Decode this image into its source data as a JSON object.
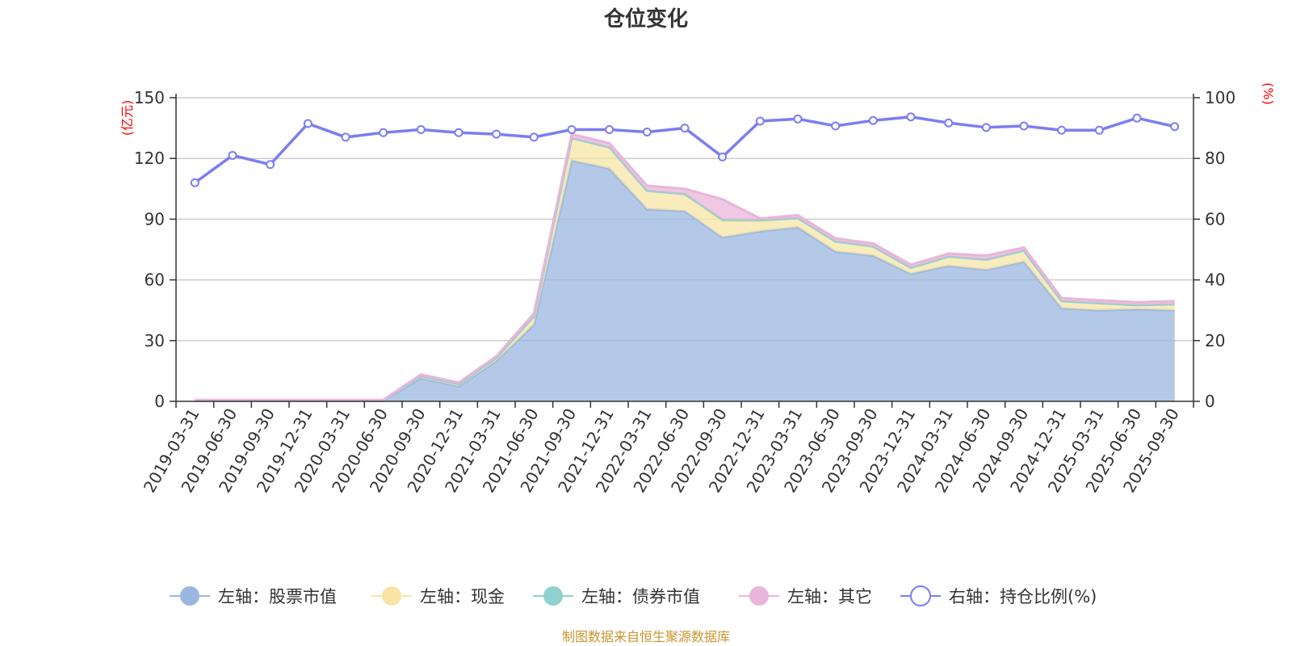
{
  "chart_data": {
    "type": "area",
    "title": "仓位变化",
    "left_axis_unit": "(亿元)",
    "right_axis_unit": "(%)",
    "left_ylim": [
      0,
      150
    ],
    "left_ticks": [
      0,
      30,
      60,
      90,
      120,
      150
    ],
    "right_ylim": [
      0,
      100
    ],
    "right_ticks": [
      0,
      20,
      40,
      60,
      80,
      100
    ],
    "categories": [
      "2019-03-31",
      "2019-06-30",
      "2019-09-30",
      "2019-12-31",
      "2020-03-31",
      "2020-06-30",
      "2020-09-30",
      "2020-12-31",
      "2021-03-31",
      "2021-06-30",
      "2021-09-30",
      "2021-12-31",
      "2022-03-31",
      "2022-06-30",
      "2022-09-30",
      "2022-12-31",
      "2023-03-31",
      "2023-06-30",
      "2023-09-30",
      "2023-12-31",
      "2024-03-31",
      "2024-06-30",
      "2024-09-30",
      "2024-12-31",
      "2025-03-31",
      "2025-06-30",
      "2025-09-30"
    ],
    "series": [
      {
        "name": "左轴：股票市值",
        "axis": "left",
        "color": "#9bb6e0",
        "values": [
          0.3,
          0.3,
          0.3,
          0.3,
          0.3,
          0.3,
          11.5,
          7.5,
          20,
          38,
          119,
          115,
          95,
          94,
          81,
          84,
          86,
          74,
          72,
          63,
          67,
          65,
          69,
          46,
          45,
          45.5,
          45
        ]
      },
      {
        "name": "左轴：现金",
        "axis": "left",
        "color": "#f7e5a5",
        "values": [
          0.2,
          0.2,
          0.2,
          0.2,
          0.2,
          0.2,
          1.0,
          1.0,
          1.5,
          4,
          11,
          10.5,
          9,
          8.5,
          8,
          5,
          4.5,
          5,
          4.5,
          3,
          4.5,
          5,
          5.5,
          3.5,
          3.5,
          2,
          3
        ]
      },
      {
        "name": "左轴：债券市值",
        "axis": "left",
        "color": "#8fd1cf",
        "values": [
          0,
          0,
          0,
          0,
          0,
          0,
          0,
          0,
          0,
          0,
          0,
          0,
          0,
          0,
          0.8,
          0.5,
          0,
          0,
          0,
          0,
          0,
          0,
          0,
          0,
          0,
          0,
          0
        ]
      },
      {
        "name": "左轴：其它",
        "axis": "left",
        "color": "#e9b5da",
        "values": [
          0.2,
          0.2,
          0.2,
          0.2,
          0.2,
          0.2,
          0.8,
          0.7,
          0.8,
          1.5,
          2,
          2,
          2.5,
          2.5,
          10,
          0.8,
          1.5,
          1.5,
          1.5,
          1.5,
          1.5,
          2,
          1.5,
          1.5,
          1.5,
          1.5,
          1.5
        ]
      },
      {
        "name": "右轴：持仓比例(%)",
        "axis": "right",
        "color": "#7b7ef0",
        "values": [
          72,
          81,
          78,
          91.5,
          87,
          88.5,
          89.5,
          88.5,
          88,
          87,
          89.5,
          89.5,
          88.7,
          90,
          80.5,
          92.3,
          93,
          90.7,
          92.5,
          93.7,
          91.7,
          90.2,
          90.7,
          89.3,
          89.3,
          93.3,
          90.5
        ]
      }
    ]
  },
  "footer": {
    "source": "制图数据来自恒生聚源数据库",
    "source_color": "#c8962e"
  }
}
